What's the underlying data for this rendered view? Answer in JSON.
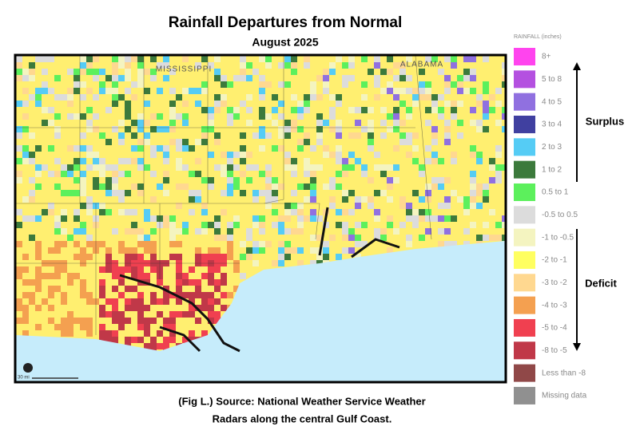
{
  "title": "Rainfall Departures from Normal",
  "subtitle": "August 2025",
  "map": {
    "labels": [
      "MISSISSIPPI",
      "ALABAMA"
    ],
    "scale": "30 mi"
  },
  "legend": {
    "title": "RAINFALL (inches)",
    "items": [
      {
        "label": "8+",
        "color": "#ff44ee"
      },
      {
        "label": "5 to 8",
        "color": "#b450e0"
      },
      {
        "label": "4 to 5",
        "color": "#9070e0"
      },
      {
        "label": "3 to 4",
        "color": "#4040a0"
      },
      {
        "label": "2 to 3",
        "color": "#55ccf5"
      },
      {
        "label": "1 to 2",
        "color": "#3c7a3c"
      },
      {
        "label": "0.5 to 1",
        "color": "#5cf05c"
      },
      {
        "label": "-0.5 to 0.5",
        "color": "#dcdcdc"
      },
      {
        "label": "-1 to -0.5",
        "color": "#f4f4c0"
      },
      {
        "label": "-2 to -1",
        "color": "#ffff60"
      },
      {
        "label": "-3 to -2",
        "color": "#ffd890"
      },
      {
        "label": "-4 to -3",
        "color": "#f4a050"
      },
      {
        "label": "-5 to -4",
        "color": "#f04050"
      },
      {
        "label": "-8 to -5",
        "color": "#c03848"
      },
      {
        "label": "Less than -8",
        "color": "#904848"
      },
      {
        "label": "Missing data",
        "color": "#909090"
      }
    ]
  },
  "annotations": {
    "surplus": "Surplus",
    "deficit": "Deficit"
  },
  "caption": [
    "(Fig L.) Source: National Weather Service Weather",
    "Radars along the central Gulf Coast."
  ]
}
